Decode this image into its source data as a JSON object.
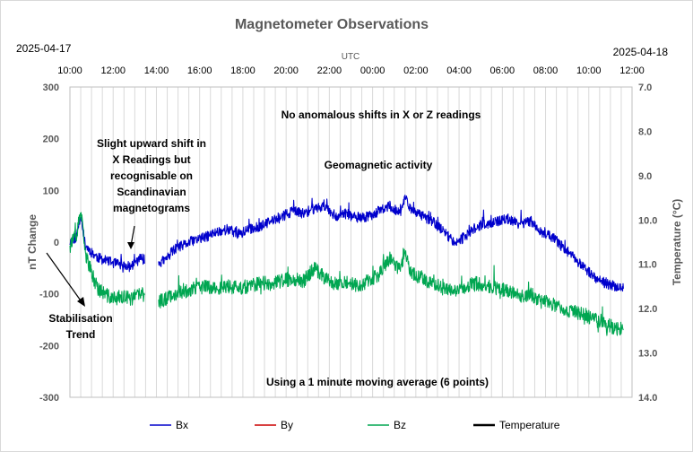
{
  "chart_data": {
    "type": "line",
    "title": "Magnetometer Observations",
    "date_left": "2025-04-17",
    "date_right": "2025-04-18",
    "x_axis_label": "UTC",
    "x_ticks": [
      "10:00",
      "12:00",
      "14:00",
      "16:00",
      "18:00",
      "20:00",
      "22:00",
      "00:00",
      "02:00",
      "04:00",
      "06:00",
      "08:00",
      "10:00",
      "12:00"
    ],
    "x_range_hours": [
      0,
      26
    ],
    "ylabel": "nT Change",
    "ylim": [
      -300,
      300
    ],
    "y_ticks": [
      300,
      200,
      100,
      0,
      -100,
      -200,
      -300
    ],
    "y2label": "Temperature (°C)",
    "y2lim": [
      7.0,
      14.0
    ],
    "y2_ticks": [
      "7.0",
      "8.0",
      "9.0",
      "10.0",
      "11.0",
      "12.0",
      "13.0",
      "14.0"
    ],
    "y2_inverted": true,
    "grid": "vertical",
    "legend_position": "bottom",
    "series": [
      {
        "name": "Bx",
        "color": "#0000cc",
        "points": [
          [
            0.0,
            0
          ],
          [
            0.3,
            10
          ],
          [
            0.5,
            55
          ],
          [
            0.7,
            -5
          ],
          [
            1.0,
            -20
          ],
          [
            1.3,
            -30
          ],
          [
            1.6,
            -35
          ],
          [
            2.0,
            -40
          ],
          [
            2.4,
            -45
          ],
          [
            2.8,
            -48
          ],
          [
            3.0,
            -40
          ],
          [
            3.3,
            -30
          ],
          [
            3.45,
            -35
          ],
          [
            3.8,
            -30
          ],
          [
            4.1,
            -40
          ],
          [
            4.4,
            -35
          ],
          [
            4.8,
            -15
          ],
          [
            5.3,
            -5
          ],
          [
            5.8,
            5
          ],
          [
            6.3,
            10
          ],
          [
            6.8,
            20
          ],
          [
            7.3,
            25
          ],
          [
            7.8,
            15
          ],
          [
            8.3,
            25
          ],
          [
            8.8,
            30
          ],
          [
            9.3,
            40
          ],
          [
            9.8,
            50
          ],
          [
            10.3,
            60
          ],
          [
            10.8,
            55
          ],
          [
            11.3,
            65
          ],
          [
            11.8,
            70
          ],
          [
            12.3,
            50
          ],
          [
            12.8,
            55
          ],
          [
            13.3,
            45
          ],
          [
            13.8,
            50
          ],
          [
            14.3,
            60
          ],
          [
            14.8,
            70
          ],
          [
            15.3,
            55
          ],
          [
            15.5,
            90
          ],
          [
            15.8,
            60
          ],
          [
            16.3,
            50
          ],
          [
            16.8,
            40
          ],
          [
            17.3,
            20
          ],
          [
            17.8,
            0
          ],
          [
            18.3,
            10
          ],
          [
            18.8,
            30
          ],
          [
            19.3,
            35
          ],
          [
            19.8,
            40
          ],
          [
            20.3,
            45
          ],
          [
            20.8,
            35
          ],
          [
            21.3,
            40
          ],
          [
            21.8,
            20
          ],
          [
            22.3,
            10
          ],
          [
            22.8,
            -10
          ],
          [
            23.3,
            -30
          ],
          [
            23.8,
            -50
          ],
          [
            24.3,
            -70
          ],
          [
            24.8,
            -80
          ],
          [
            25.2,
            -85
          ],
          [
            25.6,
            -90
          ]
        ]
      },
      {
        "name": "By",
        "color": "#cc0000",
        "points": []
      },
      {
        "name": "Bz",
        "color": "#00a651",
        "points": [
          [
            0.0,
            0
          ],
          [
            0.3,
            10
          ],
          [
            0.5,
            60
          ],
          [
            0.7,
            -20
          ],
          [
            1.0,
            -60
          ],
          [
            1.3,
            -90
          ],
          [
            1.6,
            -100
          ],
          [
            2.0,
            -110
          ],
          [
            2.4,
            -105
          ],
          [
            2.8,
            -110
          ],
          [
            3.0,
            -105
          ],
          [
            3.3,
            -100
          ],
          [
            4.1,
            -115
          ],
          [
            4.4,
            -110
          ],
          [
            4.8,
            -100
          ],
          [
            5.3,
            -95
          ],
          [
            5.8,
            -90
          ],
          [
            6.3,
            -85
          ],
          [
            6.8,
            -90
          ],
          [
            7.3,
            -85
          ],
          [
            7.8,
            -90
          ],
          [
            8.3,
            -85
          ],
          [
            8.8,
            -80
          ],
          [
            9.3,
            -80
          ],
          [
            9.8,
            -75
          ],
          [
            10.3,
            -70
          ],
          [
            10.8,
            -75
          ],
          [
            11.3,
            -50
          ],
          [
            11.8,
            -70
          ],
          [
            12.3,
            -80
          ],
          [
            12.8,
            -75
          ],
          [
            13.3,
            -85
          ],
          [
            13.8,
            -75
          ],
          [
            14.3,
            -65
          ],
          [
            14.8,
            -30
          ],
          [
            15.3,
            -55
          ],
          [
            15.5,
            -20
          ],
          [
            15.8,
            -60
          ],
          [
            16.3,
            -70
          ],
          [
            16.8,
            -80
          ],
          [
            17.3,
            -90
          ],
          [
            17.8,
            -95
          ],
          [
            18.3,
            -85
          ],
          [
            18.8,
            -80
          ],
          [
            19.3,
            -85
          ],
          [
            19.8,
            -90
          ],
          [
            20.3,
            -95
          ],
          [
            20.8,
            -105
          ],
          [
            21.3,
            -100
          ],
          [
            21.8,
            -115
          ],
          [
            22.3,
            -120
          ],
          [
            22.8,
            -130
          ],
          [
            23.3,
            -135
          ],
          [
            23.8,
            -140
          ],
          [
            24.3,
            -150
          ],
          [
            24.8,
            -160
          ],
          [
            25.2,
            -165
          ],
          [
            25.6,
            -170
          ]
        ]
      },
      {
        "name": "Temperature",
        "color": "#000000",
        "points": []
      }
    ],
    "gap_hours": [
      3.45,
      4.1
    ],
    "annotations": [
      {
        "id": "no-shift",
        "lines": [
          "No  anomalous shifts in X or Z readings"
        ]
      },
      {
        "id": "slight-shift",
        "lines": [
          "Slight upward shift in",
          "X Readings but",
          "recognisable on",
          "Scandinavian",
          "magnetograms"
        ]
      },
      {
        "id": "geomag",
        "lines": [
          "Geomagnetic activity"
        ]
      },
      {
        "id": "stabilisation",
        "lines": [
          "Stabilisation",
          "Trend"
        ]
      },
      {
        "id": "moving-avg",
        "lines": [
          "Using a 1 minute moving average  (6 points)"
        ]
      }
    ]
  }
}
